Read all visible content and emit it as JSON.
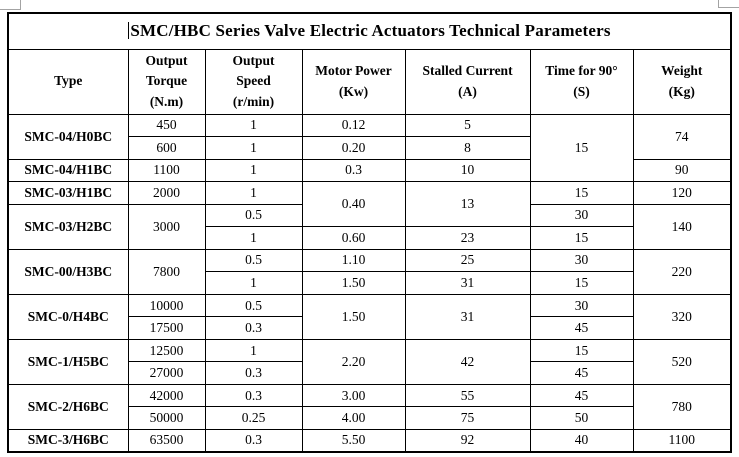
{
  "title": "SMC/HBC Series Valve Electric Actuators Technical Parameters",
  "colors": {
    "border": "#000000",
    "text": "#000000",
    "background": "#ffffff",
    "crop_mark": "#a3a3a3"
  },
  "table": {
    "columns": [
      {
        "id": "type",
        "lines": [
          "Type"
        ]
      },
      {
        "id": "output-torque",
        "lines": [
          "Output",
          "Torque",
          "(N.m)"
        ]
      },
      {
        "id": "output-speed",
        "lines": [
          "Output",
          "Speed",
          "(r/min)"
        ]
      },
      {
        "id": "motor-power",
        "lines": [
          "Motor Power",
          "(Kw)"
        ]
      },
      {
        "id": "stalled-current",
        "lines": [
          "Stalled Current",
          "(A)"
        ]
      },
      {
        "id": "time-for-90",
        "lines": [
          "Time for 90°",
          "(S)"
        ]
      },
      {
        "id": "weight",
        "lines": [
          "Weight",
          "(Kg)"
        ]
      }
    ],
    "rows": [
      [
        {
          "v": "SMC-04/H0BC",
          "rs": 2,
          "b": true
        },
        {
          "v": "450"
        },
        {
          "v": "1"
        },
        {
          "v": "0.12"
        },
        {
          "v": "5"
        },
        {
          "v": "15",
          "rs": 3
        },
        {
          "v": "74",
          "rs": 2
        }
      ],
      [
        null,
        {
          "v": "600"
        },
        {
          "v": "1"
        },
        {
          "v": "0.20"
        },
        {
          "v": "8"
        },
        null,
        null
      ],
      [
        {
          "v": "SMC-04/H1BC",
          "b": true
        },
        {
          "v": "1100"
        },
        {
          "v": "1"
        },
        {
          "v": "0.3"
        },
        {
          "v": "10"
        },
        null,
        {
          "v": "90"
        }
      ],
      [
        {
          "v": "SMC-03/H1BC",
          "b": true
        },
        {
          "v": "2000"
        },
        {
          "v": "1"
        },
        {
          "v": "0.40",
          "rs": 2
        },
        {
          "v": "13",
          "rs": 2
        },
        {
          "v": "15"
        },
        {
          "v": "120"
        }
      ],
      [
        {
          "v": "SMC-03/H2BC",
          "rs": 2,
          "b": true
        },
        {
          "v": "3000",
          "rs": 2
        },
        {
          "v": "0.5"
        },
        null,
        null,
        {
          "v": "30"
        },
        {
          "v": "140",
          "rs": 2
        }
      ],
      [
        null,
        null,
        {
          "v": "1"
        },
        {
          "v": "0.60"
        },
        {
          "v": "23"
        },
        {
          "v": "15"
        },
        null
      ],
      [
        {
          "v": "SMC-00/H3BC",
          "rs": 2,
          "b": true
        },
        {
          "v": "7800",
          "rs": 2
        },
        {
          "v": "0.5"
        },
        {
          "v": "1.10"
        },
        {
          "v": "25"
        },
        {
          "v": "30"
        },
        {
          "v": "220",
          "rs": 2
        }
      ],
      [
        null,
        null,
        {
          "v": "1"
        },
        {
          "v": "1.50"
        },
        {
          "v": "31"
        },
        {
          "v": "15"
        },
        null
      ],
      [
        {
          "v": "SMC-0/H4BC",
          "rs": 2,
          "b": true
        },
        {
          "v": "10000"
        },
        {
          "v": "0.5"
        },
        {
          "v": "1.50",
          "rs": 2
        },
        {
          "v": "31",
          "rs": 2
        },
        {
          "v": "30"
        },
        {
          "v": "320",
          "rs": 2
        }
      ],
      [
        null,
        {
          "v": "17500"
        },
        {
          "v": "0.3"
        },
        null,
        null,
        {
          "v": "45"
        },
        null
      ],
      [
        {
          "v": "SMC-1/H5BC",
          "rs": 2,
          "b": true
        },
        {
          "v": "12500"
        },
        {
          "v": "1"
        },
        {
          "v": "2.20",
          "rs": 2
        },
        {
          "v": "42",
          "rs": 2
        },
        {
          "v": "15"
        },
        {
          "v": "520",
          "rs": 2
        }
      ],
      [
        null,
        {
          "v": "27000"
        },
        {
          "v": "0.3"
        },
        null,
        null,
        {
          "v": "45"
        },
        null
      ],
      [
        {
          "v": "SMC-2/H6BC",
          "rs": 2,
          "b": true
        },
        {
          "v": "42000"
        },
        {
          "v": "0.3"
        },
        {
          "v": "3.00"
        },
        {
          "v": "55"
        },
        {
          "v": "45"
        },
        {
          "v": "780",
          "rs": 2
        }
      ],
      [
        null,
        {
          "v": "50000"
        },
        {
          "v": "0.25"
        },
        {
          "v": "4.00"
        },
        {
          "v": "75"
        },
        {
          "v": "50"
        },
        null
      ],
      [
        {
          "v": "SMC-3/H6BC",
          "b": true
        },
        {
          "v": "63500"
        },
        {
          "v": "0.3"
        },
        {
          "v": "5.50"
        },
        {
          "v": "92"
        },
        {
          "v": "40"
        },
        {
          "v": "1100"
        }
      ]
    ]
  }
}
